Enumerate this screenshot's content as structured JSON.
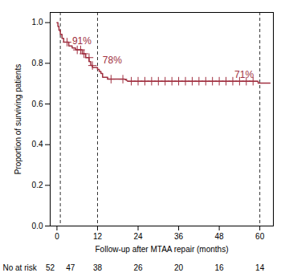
{
  "chart_data": {
    "type": "line",
    "xlabel": "Follow-up after MTAA repair (months)",
    "ylabel": "Proportion of surviving patients",
    "xlim": [
      -2,
      64
    ],
    "ylim": [
      0.0,
      1.05
    ],
    "xticks": [
      0,
      12,
      24,
      36,
      48,
      60
    ],
    "yticks": [
      {
        "value": 0.0,
        "label": "0.0"
      },
      0.2,
      0.4,
      0.6,
      0.8,
      {
        "value": 1.0,
        "label": "1.0"
      }
    ],
    "series": [
      {
        "type": "line",
        "color": "#a03040",
        "x": [
          0.0,
          0.3,
          0.3,
          0.6,
          0.6,
          1.0,
          1.0,
          1.5,
          1.5,
          2.0,
          2.0,
          2.5,
          3.0,
          3.5,
          3.5,
          4.0,
          4.5,
          4.5,
          5.0,
          5.5,
          5.5,
          6.0,
          7.0,
          7.5,
          7.5,
          8.0,
          8.5,
          8.5,
          9.5,
          9.5,
          10.0,
          10.0,
          10.5,
          10.5,
          11.5,
          12.0,
          12.0,
          12.5,
          12.5,
          13.0,
          13.0,
          13.5,
          13.5,
          15.0,
          15.0,
          16.0,
          17.5,
          18.0,
          19.5,
          20.0,
          21.0,
          25.0,
          30.0,
          35.0,
          40.0,
          45.0,
          50.0,
          55.0,
          59.5,
          59.5,
          63.0
        ],
        "values": [
          1.0,
          1.0,
          0.981,
          0.981,
          0.962,
          0.962,
          0.942,
          0.942,
          0.923,
          0.923,
          0.904,
          0.904,
          0.904,
          0.904,
          0.885,
          0.885,
          0.885,
          0.875,
          0.875,
          0.875,
          0.866,
          0.866,
          0.866,
          0.866,
          0.847,
          0.847,
          0.847,
          0.828,
          0.828,
          0.808,
          0.808,
          0.789,
          0.789,
          0.78,
          0.78,
          0.78,
          0.77,
          0.77,
          0.76,
          0.76,
          0.75,
          0.75,
          0.731,
          0.731,
          0.722,
          0.722,
          0.722,
          0.722,
          0.722,
          0.722,
          0.712,
          0.712,
          0.712,
          0.712,
          0.712,
          0.712,
          0.712,
          0.712,
          0.712,
          0.703,
          0.703
        ]
      },
      {
        "type": "scatter",
        "marker": "plus",
        "color": "#a03040",
        "x": [
          3.0,
          6.0,
          7.0,
          8.0,
          9.5,
          10.5,
          16.0,
          19.5,
          22.0,
          24.0,
          26.0,
          28.0,
          30.0,
          32.0,
          34.0,
          36.0,
          38.0,
          40.0,
          42.0,
          44.0,
          46.0,
          48.0,
          50.0,
          52.0,
          54.0,
          56.0,
          58.0
        ],
        "values": [
          0.904,
          0.866,
          0.866,
          0.847,
          0.828,
          0.789,
          0.722,
          0.722,
          0.712,
          0.712,
          0.712,
          0.712,
          0.712,
          0.712,
          0.712,
          0.712,
          0.712,
          0.712,
          0.712,
          0.712,
          0.712,
          0.712,
          0.712,
          0.712,
          0.712,
          0.712,
          0.712
        ]
      }
    ],
    "vlines": {
      "values": [
        1,
        12,
        60
      ],
      "color": "#333333",
      "line_style": "dashed"
    },
    "annotations": [
      {
        "text": "91%",
        "x": 4.5,
        "y": 0.895,
        "color": "#a03040"
      },
      {
        "text": "78%",
        "x": 13.5,
        "y": 0.8,
        "color": "#a03040"
      },
      {
        "text": "71%",
        "x": 52.5,
        "y": 0.728,
        "color": "#a03040"
      }
    ],
    "at_risk": {
      "label": "No at risk",
      "x": [
        -2,
        4,
        12,
        24,
        36,
        48,
        60
      ],
      "values": [
        52,
        47,
        38,
        26,
        20,
        16,
        14
      ]
    }
  }
}
